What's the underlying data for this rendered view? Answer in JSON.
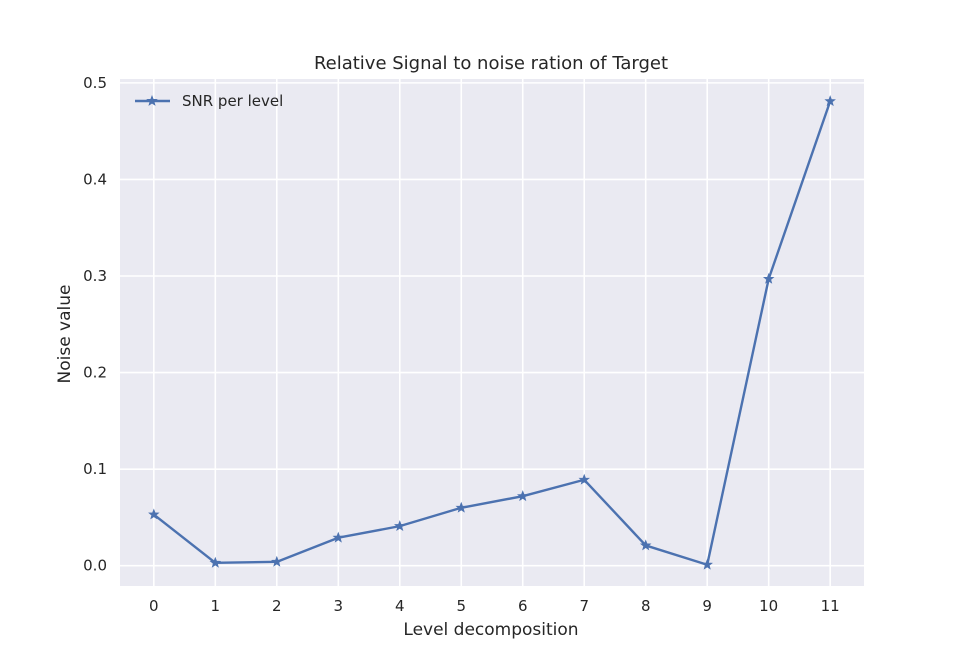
{
  "chart_data": {
    "type": "line",
    "title": "Relative Signal to noise ration of Target",
    "xlabel": "Level decomposition",
    "ylabel": "Noise value",
    "x": [
      0,
      1,
      2,
      3,
      4,
      5,
      6,
      7,
      8,
      9,
      10,
      11
    ],
    "xticks": [
      "0",
      "1",
      "2",
      "3",
      "4",
      "5",
      "6",
      "7",
      "8",
      "9",
      "10",
      "11"
    ],
    "yticks": [
      "0.0",
      "0.1",
      "0.2",
      "0.3",
      "0.4",
      "0.5"
    ],
    "ytick_values": [
      0.0,
      0.1,
      0.2,
      0.3,
      0.4,
      0.5
    ],
    "xlim": [
      -0.55,
      11.55
    ],
    "ylim": [
      -0.021,
      0.504
    ],
    "grid": true,
    "legend_position": "top-left",
    "series": [
      {
        "name": "SNR per level",
        "color": "#4c72b0",
        "marker": "star",
        "values": [
          0.053,
          0.003,
          0.004,
          0.029,
          0.041,
          0.06,
          0.072,
          0.089,
          0.021,
          0.001,
          0.297,
          0.481
        ]
      }
    ]
  },
  "style": {
    "plot_background": "#eaeaf2",
    "grid_color": "#ffffff",
    "text_color": "#262626"
  }
}
